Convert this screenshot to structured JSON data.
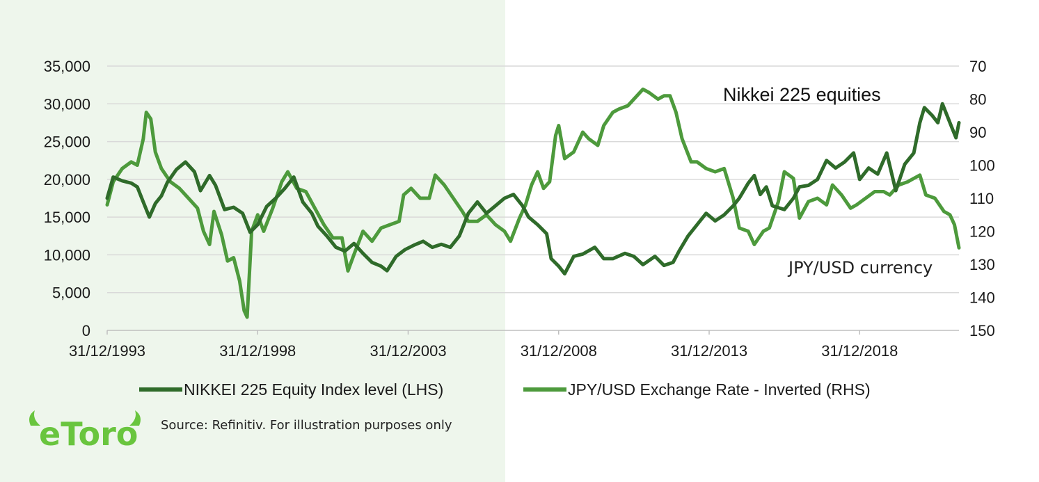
{
  "chart_data": {
    "type": "line",
    "annotations": {
      "top": "Nikkei 225 equities",
      "bottom": "JPY/USD currency"
    },
    "x_tick_labels": [
      "31/12/1993",
      "31/12/1998",
      "31/12/2003",
      "31/12/2008",
      "31/12/2013",
      "31/12/2018"
    ],
    "x_tick_years": [
      1994.0,
      1999.0,
      2004.0,
      2009.0,
      2014.0,
      2019.0
    ],
    "xlim": [
      1994.0,
      2022.3
    ],
    "left_axis": {
      "ticks": [
        0,
        5000,
        10000,
        15000,
        20000,
        25000,
        30000,
        35000
      ],
      "tick_labels": [
        "0",
        "5,000",
        "10,000",
        "15,000",
        "20,000",
        "25,000",
        "30,000",
        "35,000"
      ],
      "ylim": [
        0,
        35000
      ]
    },
    "right_axis": {
      "ticks": [
        70,
        80,
        90,
        100,
        110,
        120,
        130,
        140,
        150
      ],
      "tick_labels": [
        "70",
        "80",
        "90",
        "100",
        "110",
        "120",
        "130",
        "140",
        "150"
      ],
      "ylim": [
        70,
        150
      ],
      "inverted": true
    },
    "grid": "horizontal",
    "legend_position": "bottom",
    "colors": {
      "nikkei": "#2f6b2a",
      "jpy": "#4d9a3c",
      "panel": "#eef6ec",
      "grid": "#d9d9d9"
    },
    "series": [
      {
        "name": "NIKKEI 225 Equity Index level (LHS)",
        "axis": "left",
        "color": "#2f6b2a",
        "points": [
          [
            1994.0,
            17500
          ],
          [
            1994.2,
            20300
          ],
          [
            1994.5,
            19800
          ],
          [
            1994.8,
            19500
          ],
          [
            1995.0,
            19000
          ],
          [
            1995.2,
            17000
          ],
          [
            1995.4,
            15000
          ],
          [
            1995.6,
            16800
          ],
          [
            1995.8,
            17800
          ],
          [
            1996.0,
            19600
          ],
          [
            1996.3,
            21300
          ],
          [
            1996.6,
            22300
          ],
          [
            1996.9,
            21000
          ],
          [
            1997.1,
            18500
          ],
          [
            1997.4,
            20500
          ],
          [
            1997.6,
            19200
          ],
          [
            1997.9,
            16000
          ],
          [
            1998.2,
            16300
          ],
          [
            1998.5,
            15500
          ],
          [
            1998.75,
            13000
          ],
          [
            1999.0,
            14000
          ],
          [
            1999.3,
            16400
          ],
          [
            1999.6,
            17500
          ],
          [
            1999.9,
            18800
          ],
          [
            2000.2,
            20300
          ],
          [
            2000.5,
            17000
          ],
          [
            2000.8,
            15500
          ],
          [
            2001.0,
            13800
          ],
          [
            2001.3,
            12500
          ],
          [
            2001.6,
            11000
          ],
          [
            2001.9,
            10500
          ],
          [
            2002.2,
            11500
          ],
          [
            2002.5,
            10200
          ],
          [
            2002.8,
            9000
          ],
          [
            2003.1,
            8500
          ],
          [
            2003.3,
            7900
          ],
          [
            2003.6,
            9800
          ],
          [
            2003.9,
            10700
          ],
          [
            2004.2,
            11300
          ],
          [
            2004.5,
            11800
          ],
          [
            2004.8,
            11000
          ],
          [
            2005.1,
            11400
          ],
          [
            2005.4,
            11000
          ],
          [
            2005.7,
            12500
          ],
          [
            2006.0,
            15500
          ],
          [
            2006.3,
            17000
          ],
          [
            2006.6,
            15500
          ],
          [
            2006.9,
            16500
          ],
          [
            2007.2,
            17500
          ],
          [
            2007.5,
            18000
          ],
          [
            2007.8,
            16500
          ],
          [
            2008.0,
            15000
          ],
          [
            2008.3,
            14000
          ],
          [
            2008.6,
            12800
          ],
          [
            2008.75,
            9500
          ],
          [
            2009.0,
            8500
          ],
          [
            2009.2,
            7500
          ],
          [
            2009.5,
            9800
          ],
          [
            2009.8,
            10100
          ],
          [
            2010.2,
            11000
          ],
          [
            2010.5,
            9500
          ],
          [
            2010.8,
            9500
          ],
          [
            2011.2,
            10200
          ],
          [
            2011.5,
            9800
          ],
          [
            2011.8,
            8700
          ],
          [
            2012.2,
            9800
          ],
          [
            2012.5,
            8600
          ],
          [
            2012.8,
            9000
          ],
          [
            2013.0,
            10500
          ],
          [
            2013.3,
            12500
          ],
          [
            2013.6,
            14000
          ],
          [
            2013.9,
            15500
          ],
          [
            2014.2,
            14500
          ],
          [
            2014.5,
            15300
          ],
          [
            2014.8,
            16500
          ],
          [
            2015.0,
            17500
          ],
          [
            2015.3,
            19500
          ],
          [
            2015.5,
            20500
          ],
          [
            2015.7,
            18000
          ],
          [
            2015.9,
            19000
          ],
          [
            2016.1,
            16500
          ],
          [
            2016.5,
            16000
          ],
          [
            2016.8,
            17500
          ],
          [
            2017.0,
            19000
          ],
          [
            2017.3,
            19200
          ],
          [
            2017.6,
            20000
          ],
          [
            2017.9,
            22500
          ],
          [
            2018.2,
            21500
          ],
          [
            2018.5,
            22300
          ],
          [
            2018.8,
            23500
          ],
          [
            2019.0,
            20000
          ],
          [
            2019.3,
            21500
          ],
          [
            2019.6,
            20700
          ],
          [
            2019.9,
            23500
          ],
          [
            2020.2,
            18500
          ],
          [
            2020.5,
            22000
          ],
          [
            2020.8,
            23500
          ],
          [
            2021.0,
            27500
          ],
          [
            2021.15,
            29500
          ],
          [
            2021.4,
            28500
          ],
          [
            2021.6,
            27500
          ],
          [
            2021.75,
            30000
          ],
          [
            2021.9,
            28500
          ],
          [
            2022.05,
            27000
          ],
          [
            2022.2,
            25500
          ],
          [
            2022.3,
            27500
          ]
        ]
      },
      {
        "name": "JPY/USD Exchange Rate - Inverted (RHS)",
        "axis": "right",
        "color": "#4d9a3c",
        "points": [
          [
            1994.0,
            112
          ],
          [
            1994.2,
            105
          ],
          [
            1994.5,
            101
          ],
          [
            1994.8,
            99
          ],
          [
            1995.0,
            100
          ],
          [
            1995.2,
            92
          ],
          [
            1995.3,
            84
          ],
          [
            1995.45,
            86
          ],
          [
            1995.6,
            96
          ],
          [
            1995.8,
            101
          ],
          [
            1996.1,
            105
          ],
          [
            1996.4,
            107
          ],
          [
            1996.7,
            110
          ],
          [
            1997.0,
            113
          ],
          [
            1997.2,
            120
          ],
          [
            1997.4,
            124
          ],
          [
            1997.55,
            114
          ],
          [
            1997.8,
            121
          ],
          [
            1998.0,
            129
          ],
          [
            1998.2,
            128
          ],
          [
            1998.4,
            135
          ],
          [
            1998.55,
            144
          ],
          [
            1998.65,
            146
          ],
          [
            1998.8,
            120
          ],
          [
            1999.0,
            115
          ],
          [
            1999.2,
            120
          ],
          [
            1999.5,
            113
          ],
          [
            1999.8,
            105
          ],
          [
            2000.0,
            102
          ],
          [
            2000.3,
            107
          ],
          [
            2000.6,
            108
          ],
          [
            2000.9,
            113
          ],
          [
            2001.2,
            118
          ],
          [
            2001.5,
            122
          ],
          [
            2001.8,
            122
          ],
          [
            2002.0,
            132
          ],
          [
            2002.2,
            127
          ],
          [
            2002.5,
            120
          ],
          [
            2002.8,
            123
          ],
          [
            2003.1,
            119
          ],
          [
            2003.4,
            118
          ],
          [
            2003.7,
            117
          ],
          [
            2003.85,
            109
          ],
          [
            2004.1,
            107
          ],
          [
            2004.4,
            110
          ],
          [
            2004.7,
            110
          ],
          [
            2004.9,
            103
          ],
          [
            2005.2,
            106
          ],
          [
            2005.5,
            110
          ],
          [
            2005.8,
            114
          ],
          [
            2006.0,
            117
          ],
          [
            2006.3,
            117
          ],
          [
            2006.6,
            115
          ],
          [
            2006.9,
            118
          ],
          [
            2007.2,
            120
          ],
          [
            2007.4,
            123
          ],
          [
            2007.7,
            116
          ],
          [
            2007.9,
            112
          ],
          [
            2008.1,
            106
          ],
          [
            2008.3,
            102
          ],
          [
            2008.5,
            107
          ],
          [
            2008.7,
            105
          ],
          [
            2008.9,
            91
          ],
          [
            2009.0,
            88
          ],
          [
            2009.2,
            98
          ],
          [
            2009.5,
            96
          ],
          [
            2009.8,
            90
          ],
          [
            2010.0,
            92
          ],
          [
            2010.3,
            94
          ],
          [
            2010.5,
            88
          ],
          [
            2010.8,
            84
          ],
          [
            2011.0,
            83
          ],
          [
            2011.3,
            82
          ],
          [
            2011.5,
            80
          ],
          [
            2011.8,
            77
          ],
          [
            2012.0,
            78
          ],
          [
            2012.3,
            80
          ],
          [
            2012.5,
            79
          ],
          [
            2012.7,
            79
          ],
          [
            2012.9,
            84
          ],
          [
            2013.1,
            92
          ],
          [
            2013.4,
            99
          ],
          [
            2013.6,
            99
          ],
          [
            2013.9,
            101
          ],
          [
            2014.2,
            102
          ],
          [
            2014.5,
            101
          ],
          [
            2014.8,
            110
          ],
          [
            2015.0,
            119
          ],
          [
            2015.3,
            120
          ],
          [
            2015.5,
            124
          ],
          [
            2015.8,
            120
          ],
          [
            2016.0,
            119
          ],
          [
            2016.3,
            111
          ],
          [
            2016.5,
            102
          ],
          [
            2016.8,
            104
          ],
          [
            2017.0,
            116
          ],
          [
            2017.3,
            111
          ],
          [
            2017.6,
            110
          ],
          [
            2017.9,
            112
          ],
          [
            2018.1,
            106
          ],
          [
            2018.4,
            109
          ],
          [
            2018.7,
            113
          ],
          [
            2018.9,
            112
          ],
          [
            2019.2,
            110
          ],
          [
            2019.5,
            108
          ],
          [
            2019.8,
            108
          ],
          [
            2020.0,
            109
          ],
          [
            2020.3,
            106
          ],
          [
            2020.6,
            105
          ],
          [
            2020.8,
            104
          ],
          [
            2021.0,
            103
          ],
          [
            2021.2,
            109
          ],
          [
            2021.5,
            110
          ],
          [
            2021.8,
            114
          ],
          [
            2022.0,
            115
          ],
          [
            2022.15,
            118
          ],
          [
            2022.3,
            125
          ]
        ]
      }
    ]
  },
  "footer": {
    "source": "Source: Refinitiv. For illustration purposes only",
    "logo_text": "eToro"
  }
}
